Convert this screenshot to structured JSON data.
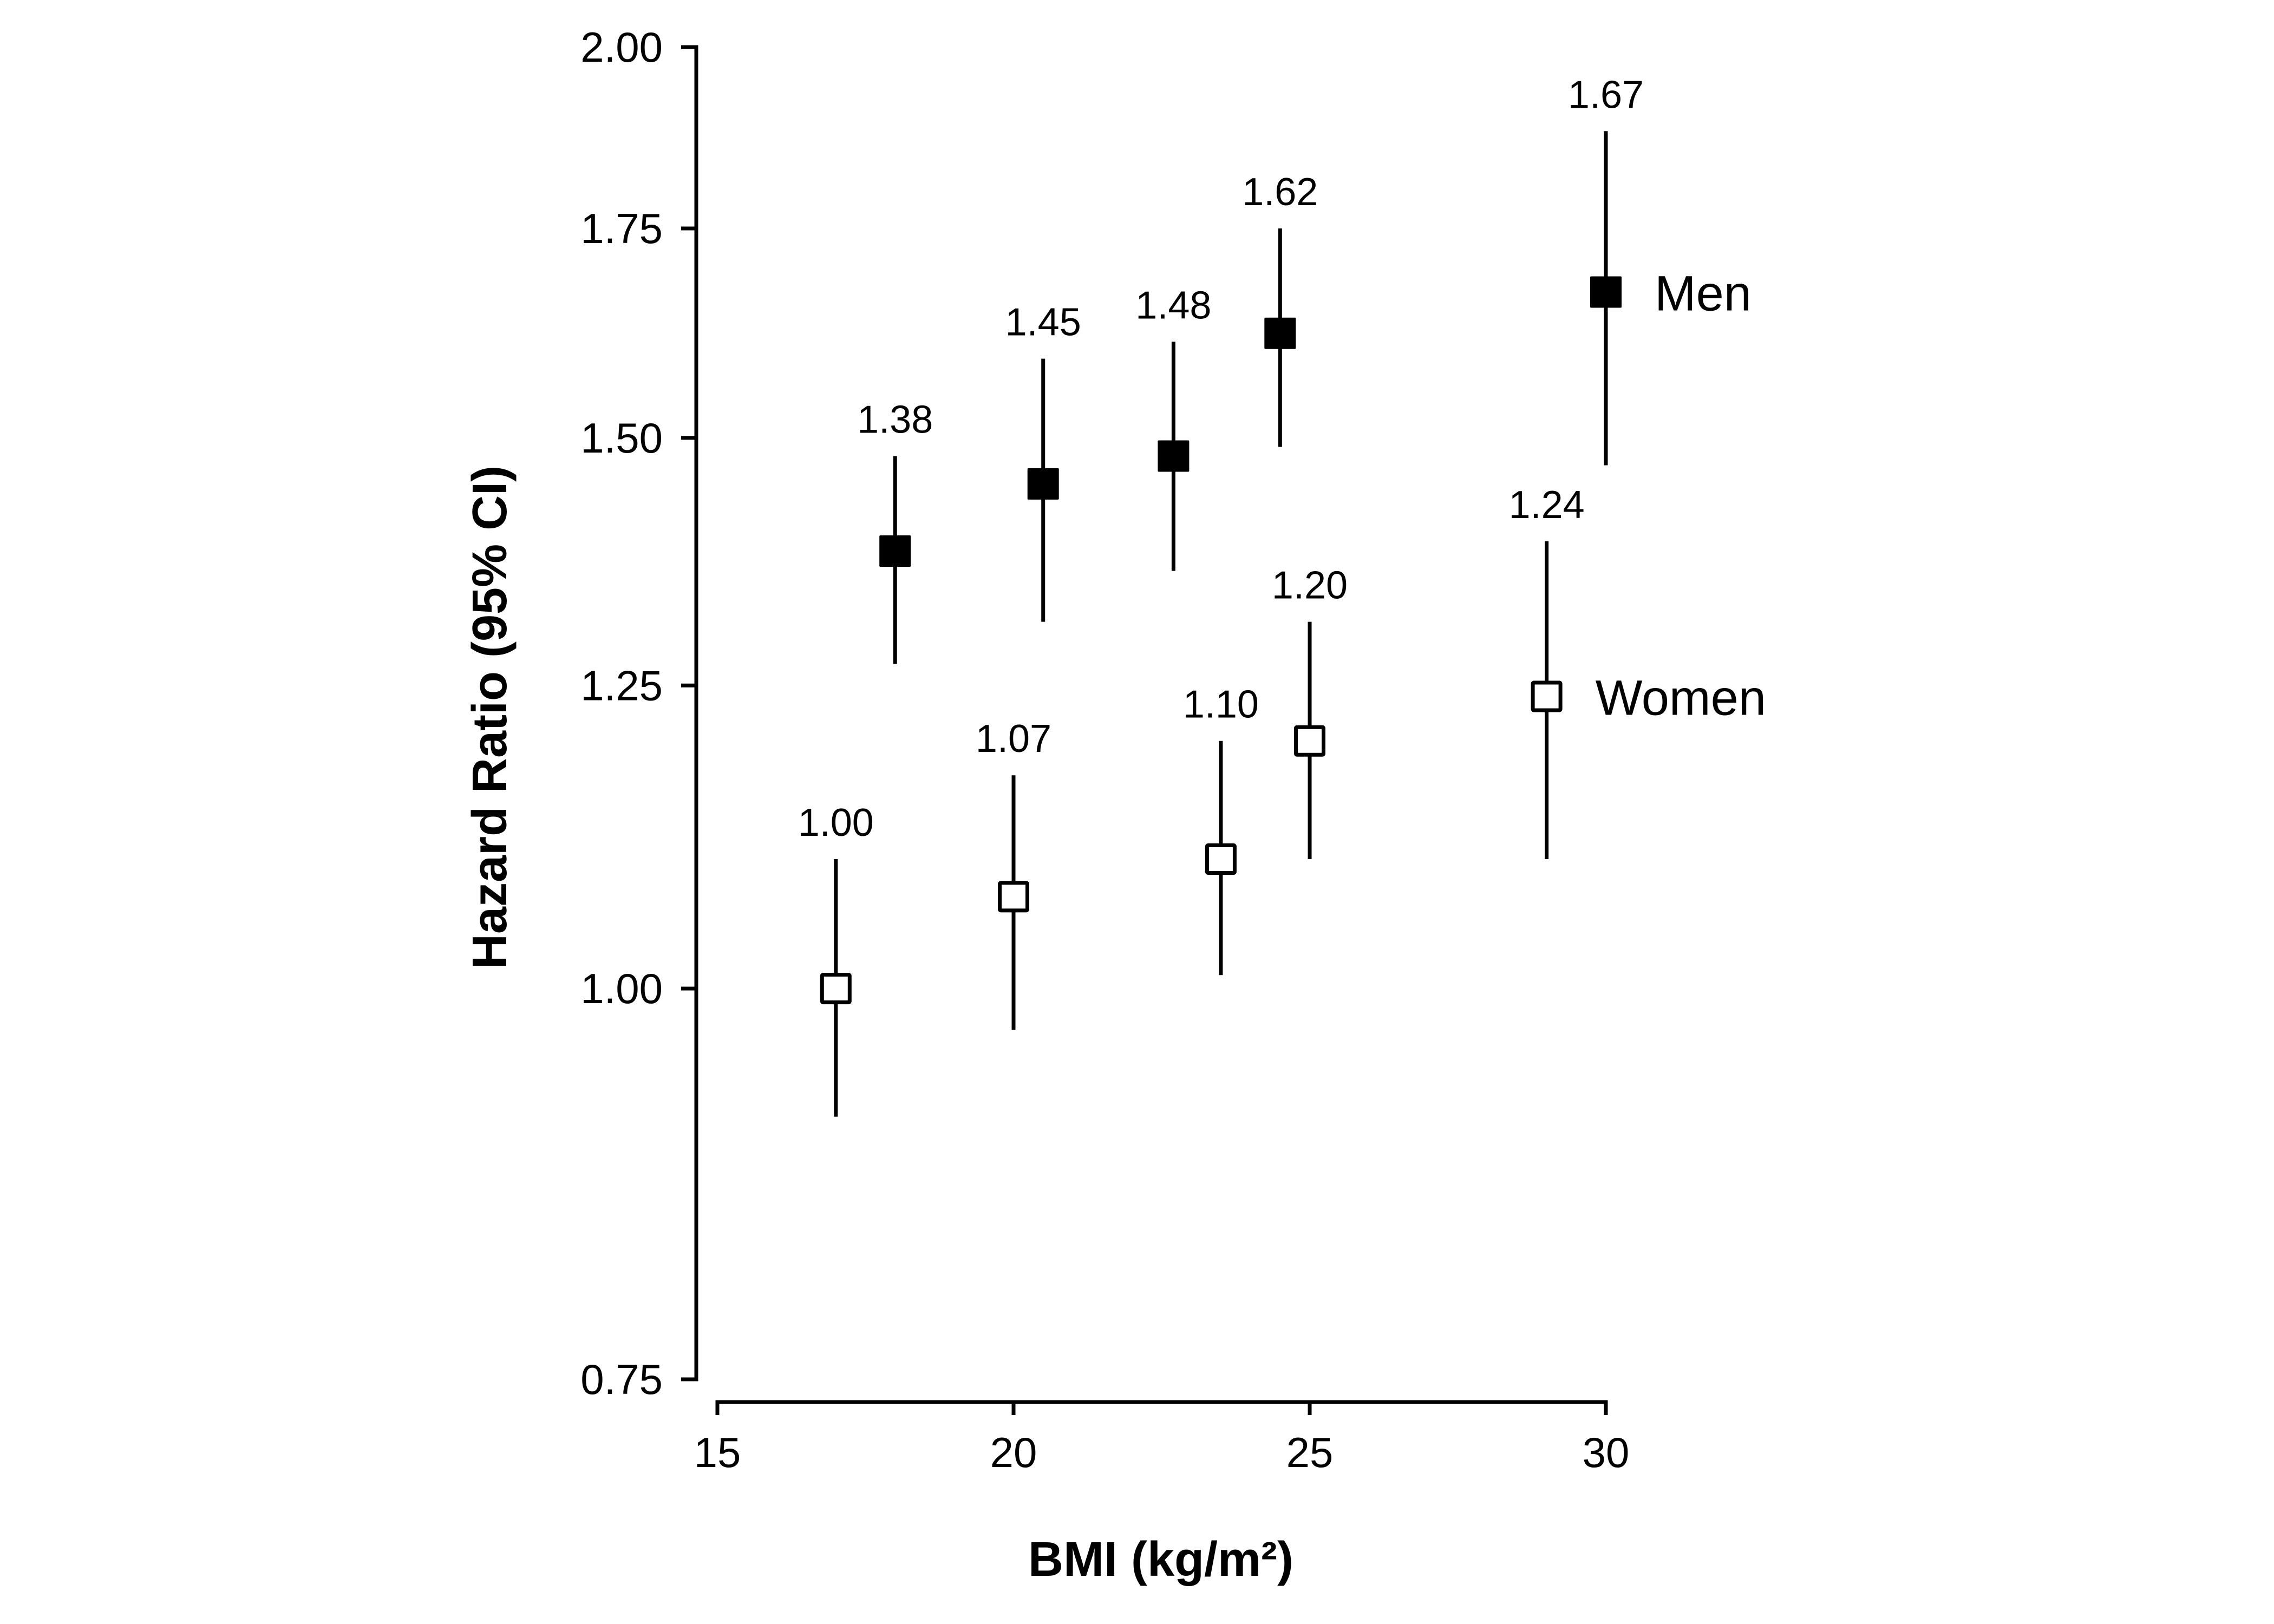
{
  "chart_data": {
    "type": "scatter",
    "title": "",
    "xlabel": "BMI (kg/m²)",
    "ylabel": "Hazard Ratio (95% CI)",
    "xlim": [
      15,
      30
    ],
    "ylim": [
      0.75,
      2.0
    ],
    "yscale": "log",
    "grid": false,
    "x_ticks": [
      "15",
      "20",
      "25",
      "30"
    ],
    "x_tick_values": [
      15,
      20,
      25,
      30
    ],
    "y_ticks": [
      "0.75",
      "1.00",
      "1.25",
      "1.50",
      "1.75",
      "2.00"
    ],
    "y_tick_values": [
      0.75,
      1.0,
      1.25,
      1.5,
      1.75,
      2.0
    ],
    "series": [
      {
        "name": "Men",
        "marker": "filled-square",
        "color": "#000000",
        "points": [
          {
            "x": 18.0,
            "y": 1.38,
            "ci_low": 1.27,
            "ci_high": 1.48,
            "label": "1.38"
          },
          {
            "x": 20.5,
            "y": 1.45,
            "ci_low": 1.31,
            "ci_high": 1.59,
            "label": "1.45"
          },
          {
            "x": 22.7,
            "y": 1.48,
            "ci_low": 1.36,
            "ci_high": 1.61,
            "label": "1.48"
          },
          {
            "x": 24.5,
            "y": 1.62,
            "ci_low": 1.49,
            "ci_high": 1.75,
            "label": "1.62"
          },
          {
            "x": 30.0,
            "y": 1.67,
            "ci_low": 1.47,
            "ci_high": 1.88,
            "label": "1.67"
          }
        ]
      },
      {
        "name": "Women",
        "marker": "open-square",
        "color": "#000000",
        "points": [
          {
            "x": 17.0,
            "y": 1.0,
            "ci_low": 0.91,
            "ci_high": 1.1,
            "label": "1.00"
          },
          {
            "x": 20.0,
            "y": 1.07,
            "ci_low": 0.97,
            "ci_high": 1.17,
            "label": "1.07"
          },
          {
            "x": 23.5,
            "y": 1.1,
            "ci_low": 1.01,
            "ci_high": 1.2,
            "label": "1.10"
          },
          {
            "x": 25.0,
            "y": 1.2,
            "ci_low": 1.1,
            "ci_high": 1.31,
            "label": "1.20"
          },
          {
            "x": 29.0,
            "y": 1.24,
            "ci_low": 1.1,
            "ci_high": 1.39,
            "label": "1.24"
          }
        ]
      }
    ],
    "annotations": [
      "Men",
      "Women"
    ]
  }
}
